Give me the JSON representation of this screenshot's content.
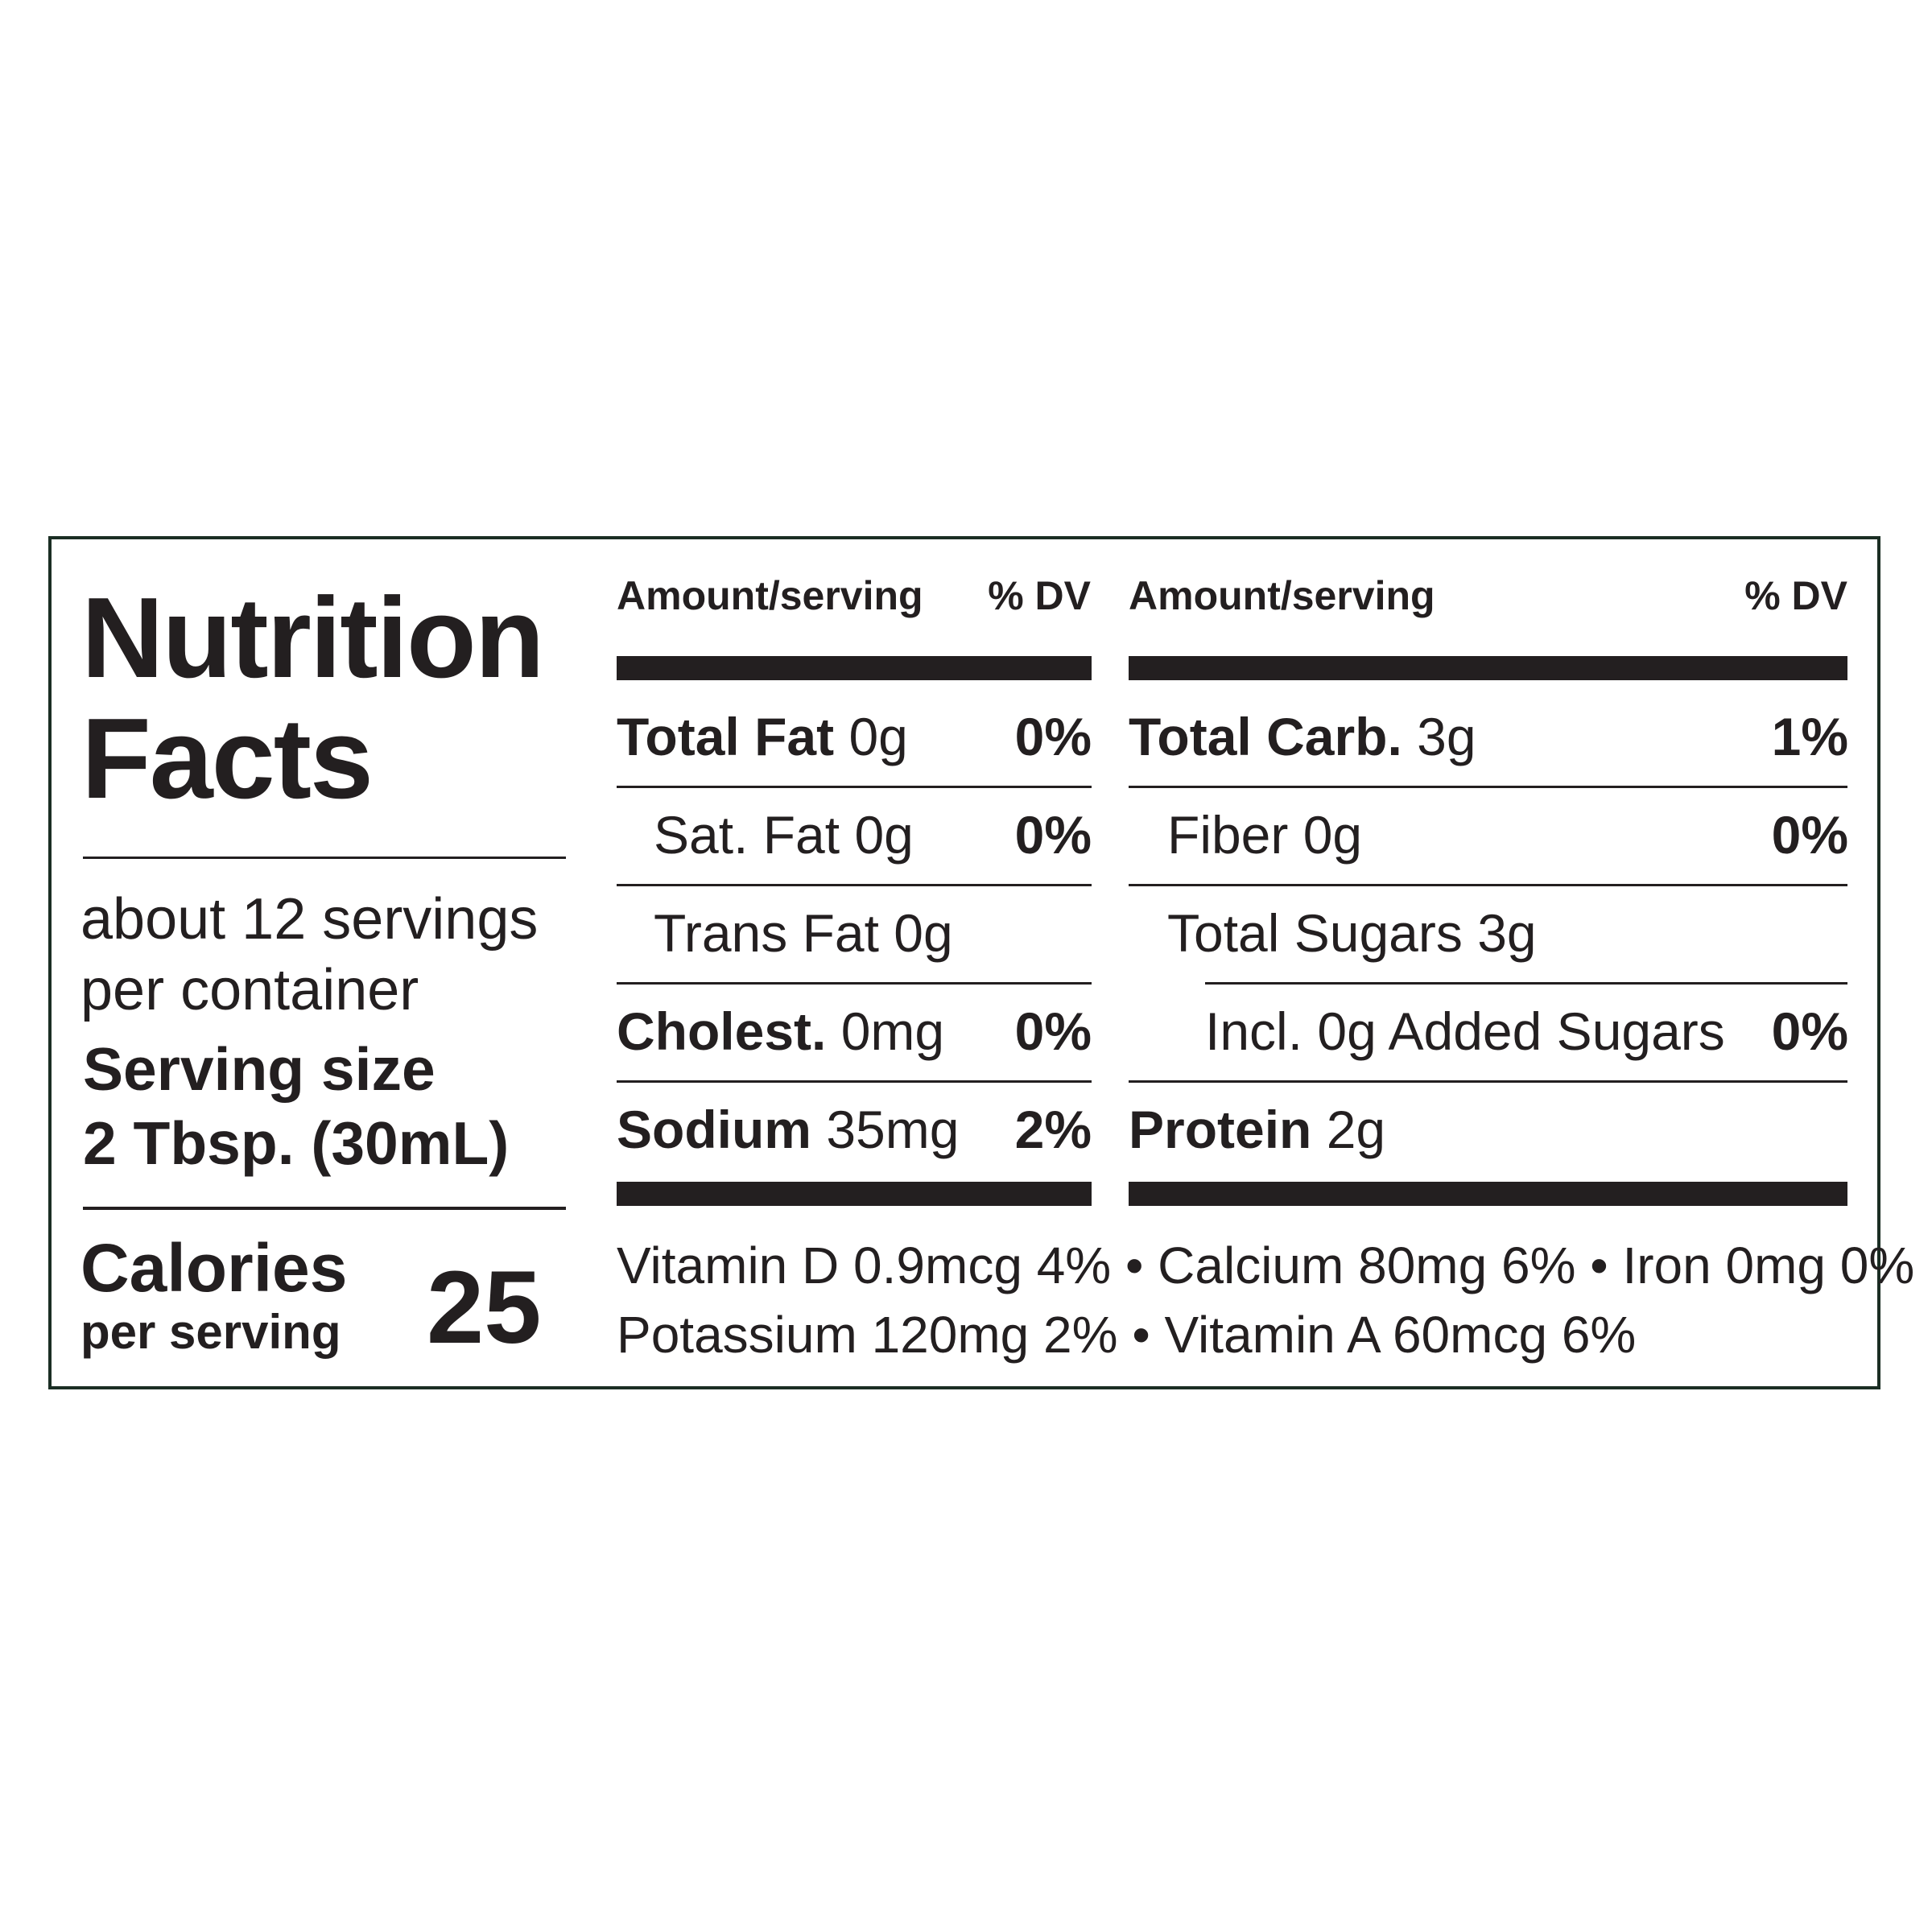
{
  "title": {
    "line1": "Nutrition",
    "line2": "Facts"
  },
  "servings": {
    "line1": "about 12 servings",
    "line2": "per container"
  },
  "serving_size": {
    "label": "Serving size",
    "value": "2 Tbsp. (30mL)"
  },
  "calories": {
    "label": "Calories",
    "sub_label": "per serving",
    "value": "25"
  },
  "headers": {
    "amount_left": "Amount/serving",
    "dv_left": "% DV",
    "amount_right": "Amount/serving",
    "dv_right": "% DV"
  },
  "left_rows": [
    {
      "name": "Total Fat",
      "amount": "0g",
      "dv": "0%"
    },
    {
      "name": "Sat. Fat",
      "amount": "0g",
      "dv": "0%"
    },
    {
      "name": "Trans Fat",
      "amount": "0g",
      "dv": ""
    },
    {
      "name": "Cholest.",
      "amount": "0mg",
      "dv": "0%"
    },
    {
      "name": "Sodium",
      "amount": "35mg",
      "dv": "2%"
    }
  ],
  "right_rows": [
    {
      "name": "Total Carb.",
      "amount": "3g",
      "dv": "1%"
    },
    {
      "name": "Fiber",
      "amount": "0g",
      "dv": "0%"
    },
    {
      "name": "Total Sugars",
      "amount": "3g",
      "dv": ""
    },
    {
      "name": "Incl. 0g Added Sugars",
      "amount": "",
      "dv": "0%"
    },
    {
      "name": "Protein",
      "amount": "2g",
      "dv": ""
    }
  ],
  "vitamins": {
    "line1": "Vitamin D 0.9mcg 4% • Calcium 80mg 6% • Iron 0mg 0%",
    "line2": "Potassium 120mg 2% • Vitamin A 60mcg 6%"
  }
}
